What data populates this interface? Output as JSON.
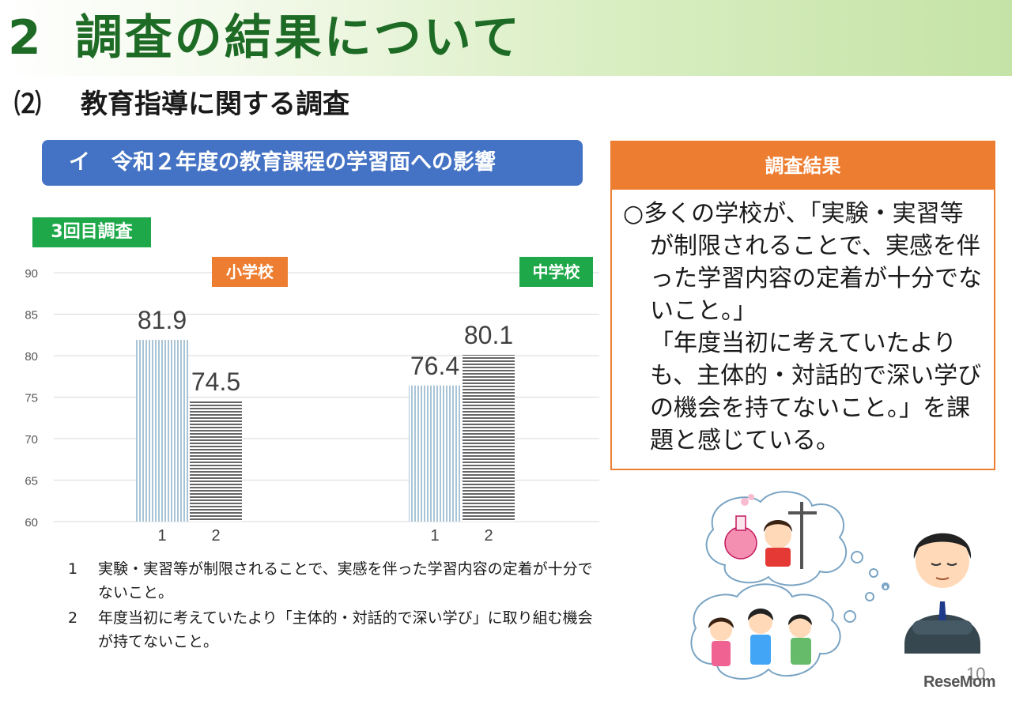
{
  "header": {
    "number": "2",
    "title": "調査の結果について"
  },
  "subheading": {
    "number": "⑵",
    "title": "教育指導に関する調査"
  },
  "banner": {
    "label": "イ　令和２年度の教育課程の学習面への影響"
  },
  "survey_badge": "3回目調査",
  "groups": {
    "elementary": "小学校",
    "junior_high": "中学校"
  },
  "chart_data": {
    "type": "bar",
    "groups": [
      "小学校",
      "中学校"
    ],
    "categories": [
      "1",
      "2"
    ],
    "values": [
      [
        81.9,
        74.5
      ],
      [
        76.4,
        80.1
      ]
    ],
    "value_labels": [
      [
        "81.9",
        "74.5"
      ],
      [
        "76.4",
        "80.1"
      ]
    ],
    "ylim": [
      60,
      90
    ],
    "yticks": [
      90,
      85,
      80,
      75,
      70,
      65,
      60
    ],
    "grid": true,
    "bar_fills": [
      "vertical-stripes-light-blue",
      "horizontal-stripes-gray"
    ],
    "colors": {
      "bar1": "#a9c4d6",
      "bar2": "#666666",
      "grid": "#d9d9d9"
    }
  },
  "notes": [
    {
      "n": "1",
      "text": "実験・実習等が制限されることで、実感を伴った学習内容の定着が十分でないこと。"
    },
    {
      "n": "2",
      "text": "年度当初に考えていたより「主体的・対話的で深い学び」に取り組む機会が持てないこと。"
    }
  ],
  "result": {
    "heading": "調査結果",
    "para1": "○多くの学校が、「実験・実習等が制限されることで、実感を伴った学習内容の定着が十分でないこと。」",
    "para2": "「年度当初に考えていたよりも、主体的・対話的で深い学びの機会を持てないこと。」を課題と感じている。"
  },
  "page_number": "10",
  "logo": "ReseMom",
  "colors": {
    "header_text": "#1e6b26",
    "banner": "#4472c4",
    "green_badge": "#1fa84a",
    "orange": "#ed7d31"
  }
}
